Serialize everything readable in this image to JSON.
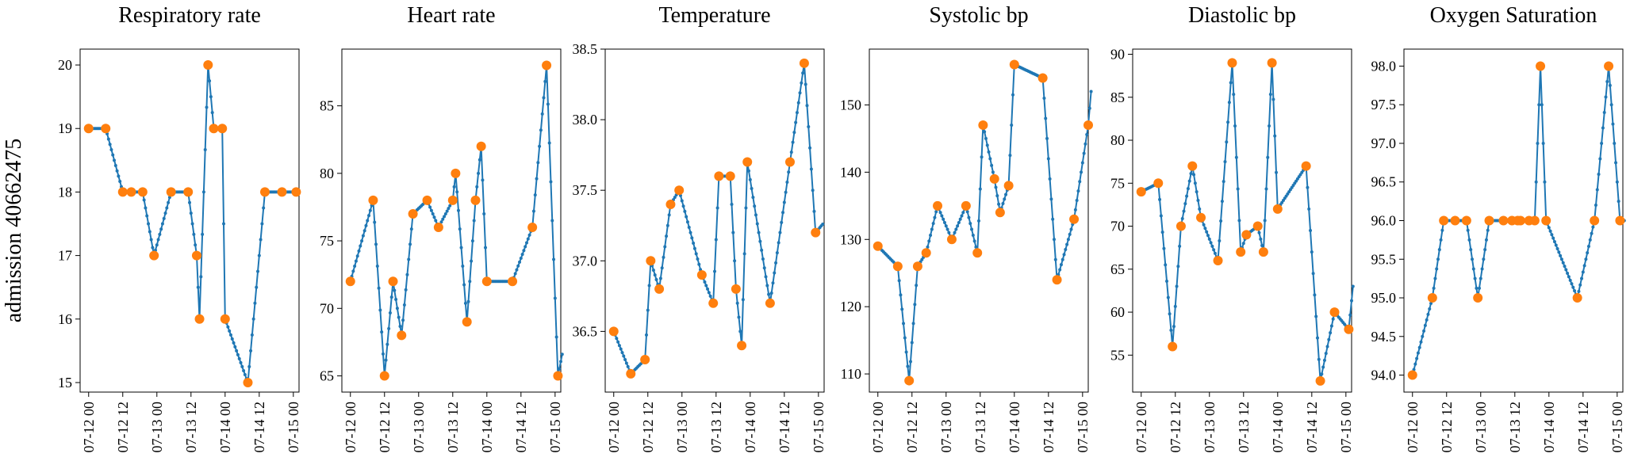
{
  "figure": {
    "row_label": "admission 40662475",
    "line_color": "#1f77b4",
    "marker_color": "#ff7f0e",
    "x_ticks": [
      "07-12 00",
      "07-12 12",
      "07-13 00",
      "07-13 12",
      "07-14 00",
      "07-14 12",
      "07-15 00"
    ]
  },
  "chart_data": [
    {
      "type": "line",
      "title": "Respiratory rate",
      "x_range_hours": [
        -3,
        74
      ],
      "ylim": [
        14.85,
        20.25
      ],
      "y_ticks": [
        15,
        16,
        17,
        18,
        19,
        20
      ],
      "y_decimals": 0,
      "observed": [
        [
          0,
          19
        ],
        [
          6,
          19
        ],
        [
          12,
          18
        ],
        [
          15,
          18
        ],
        [
          19,
          18
        ],
        [
          23,
          17
        ],
        [
          29,
          18
        ],
        [
          35,
          18
        ],
        [
          38,
          17
        ],
        [
          39,
          16
        ],
        [
          42,
          20
        ],
        [
          44,
          19
        ],
        [
          47,
          19
        ],
        [
          48,
          16
        ],
        [
          56,
          15
        ],
        [
          62,
          18
        ],
        [
          68,
          18
        ],
        [
          73,
          18
        ]
      ],
      "interpolated_end": [
        73,
        18
      ]
    },
    {
      "type": "line",
      "title": "Heart rate",
      "x_range_hours": [
        -3,
        74
      ],
      "ylim": [
        63.8,
        89.2
      ],
      "y_ticks": [
        65,
        70,
        75,
        80,
        85
      ],
      "y_decimals": 0,
      "observed": [
        [
          0,
          72
        ],
        [
          8,
          78
        ],
        [
          12,
          65
        ],
        [
          15,
          72
        ],
        [
          18,
          68
        ],
        [
          22,
          77
        ],
        [
          27,
          78
        ],
        [
          31,
          76
        ],
        [
          36,
          78
        ],
        [
          37,
          80
        ],
        [
          41,
          69
        ],
        [
          44,
          78
        ],
        [
          46,
          82
        ],
        [
          48,
          72
        ],
        [
          57,
          72
        ],
        [
          64,
          76
        ],
        [
          69,
          88
        ],
        [
          73,
          65
        ]
      ],
      "interpolated_end": [
        74.5,
        66.6
      ]
    },
    {
      "type": "line",
      "title": "Temperature",
      "x_range_hours": [
        -3,
        74
      ],
      "ylim": [
        36.07,
        38.5
      ],
      "y_ticks": [
        36.5,
        37.0,
        37.5,
        38.0,
        38.5
      ],
      "y_decimals": 1,
      "observed": [
        [
          0,
          36.5
        ],
        [
          6,
          36.2
        ],
        [
          11,
          36.3
        ],
        [
          13,
          37.0
        ],
        [
          16,
          36.8
        ],
        [
          20,
          37.4
        ],
        [
          23,
          37.5
        ],
        [
          31,
          36.9
        ],
        [
          35,
          36.7
        ],
        [
          37,
          37.6
        ],
        [
          41,
          37.6
        ],
        [
          43,
          36.8
        ],
        [
          45,
          36.4
        ],
        [
          47,
          37.7
        ],
        [
          55,
          36.7
        ],
        [
          62,
          37.7
        ],
        [
          67,
          38.4
        ],
        [
          71,
          37.2
        ]
      ],
      "interpolated_end": [
        73.5,
        37.26
      ]
    },
    {
      "type": "line",
      "title": "Systolic bp",
      "x_range_hours": [
        -3,
        74
      ],
      "ylim": [
        107.3,
        158.3
      ],
      "y_ticks": [
        110,
        120,
        130,
        140,
        150
      ],
      "y_decimals": 0,
      "observed": [
        [
          0,
          129
        ],
        [
          7,
          126
        ],
        [
          11,
          109
        ],
        [
          14,
          126
        ],
        [
          17,
          128
        ],
        [
          21,
          135
        ],
        [
          26,
          130
        ],
        [
          31,
          135
        ],
        [
          35,
          128
        ],
        [
          37,
          147
        ],
        [
          41,
          139
        ],
        [
          43,
          134
        ],
        [
          46,
          138
        ],
        [
          48,
          156
        ],
        [
          58,
          154
        ],
        [
          63,
          124
        ],
        [
          69,
          133
        ],
        [
          74,
          147
        ]
      ],
      "interpolated_end": [
        75,
        152
      ]
    },
    {
      "type": "line",
      "title": "Diastolic bp",
      "x_range_hours": [
        -3,
        74
      ],
      "ylim": [
        50.7,
        90.6
      ],
      "y_ticks": [
        55,
        60,
        65,
        70,
        75,
        80,
        85,
        90
      ],
      "y_decimals": 0,
      "observed": [
        [
          0,
          74
        ],
        [
          6,
          75
        ],
        [
          11,
          56
        ],
        [
          14,
          70
        ],
        [
          18,
          77
        ],
        [
          21,
          71
        ],
        [
          27,
          66
        ],
        [
          32,
          89
        ],
        [
          35,
          67
        ],
        [
          37,
          69
        ],
        [
          41,
          70
        ],
        [
          43,
          67
        ],
        [
          46,
          89
        ],
        [
          48,
          72
        ],
        [
          58,
          77
        ],
        [
          63,
          52
        ],
        [
          68,
          60
        ],
        [
          73,
          58
        ]
      ],
      "interpolated_end": [
        74.5,
        63
      ]
    },
    {
      "type": "line",
      "title": "Oxygen Saturation",
      "x_range_hours": [
        -3,
        74
      ],
      "ylim": [
        93.78,
        98.22
      ],
      "y_ticks": [
        94.0,
        94.5,
        95.0,
        95.5,
        96.0,
        96.5,
        97.0,
        97.5,
        98.0
      ],
      "y_decimals": 1,
      "observed": [
        [
          0,
          94
        ],
        [
          7,
          95
        ],
        [
          11,
          96
        ],
        [
          15,
          96
        ],
        [
          19,
          96
        ],
        [
          23,
          95
        ],
        [
          27,
          96
        ],
        [
          32,
          96
        ],
        [
          35,
          96
        ],
        [
          37,
          96
        ],
        [
          38,
          96
        ],
        [
          41,
          96
        ],
        [
          43,
          96
        ],
        [
          45,
          98
        ],
        [
          47,
          96
        ],
        [
          58,
          95
        ],
        [
          64,
          96
        ],
        [
          69,
          98
        ],
        [
          73,
          96
        ]
      ],
      "interpolated_end": [
        74.5,
        96
      ]
    }
  ]
}
